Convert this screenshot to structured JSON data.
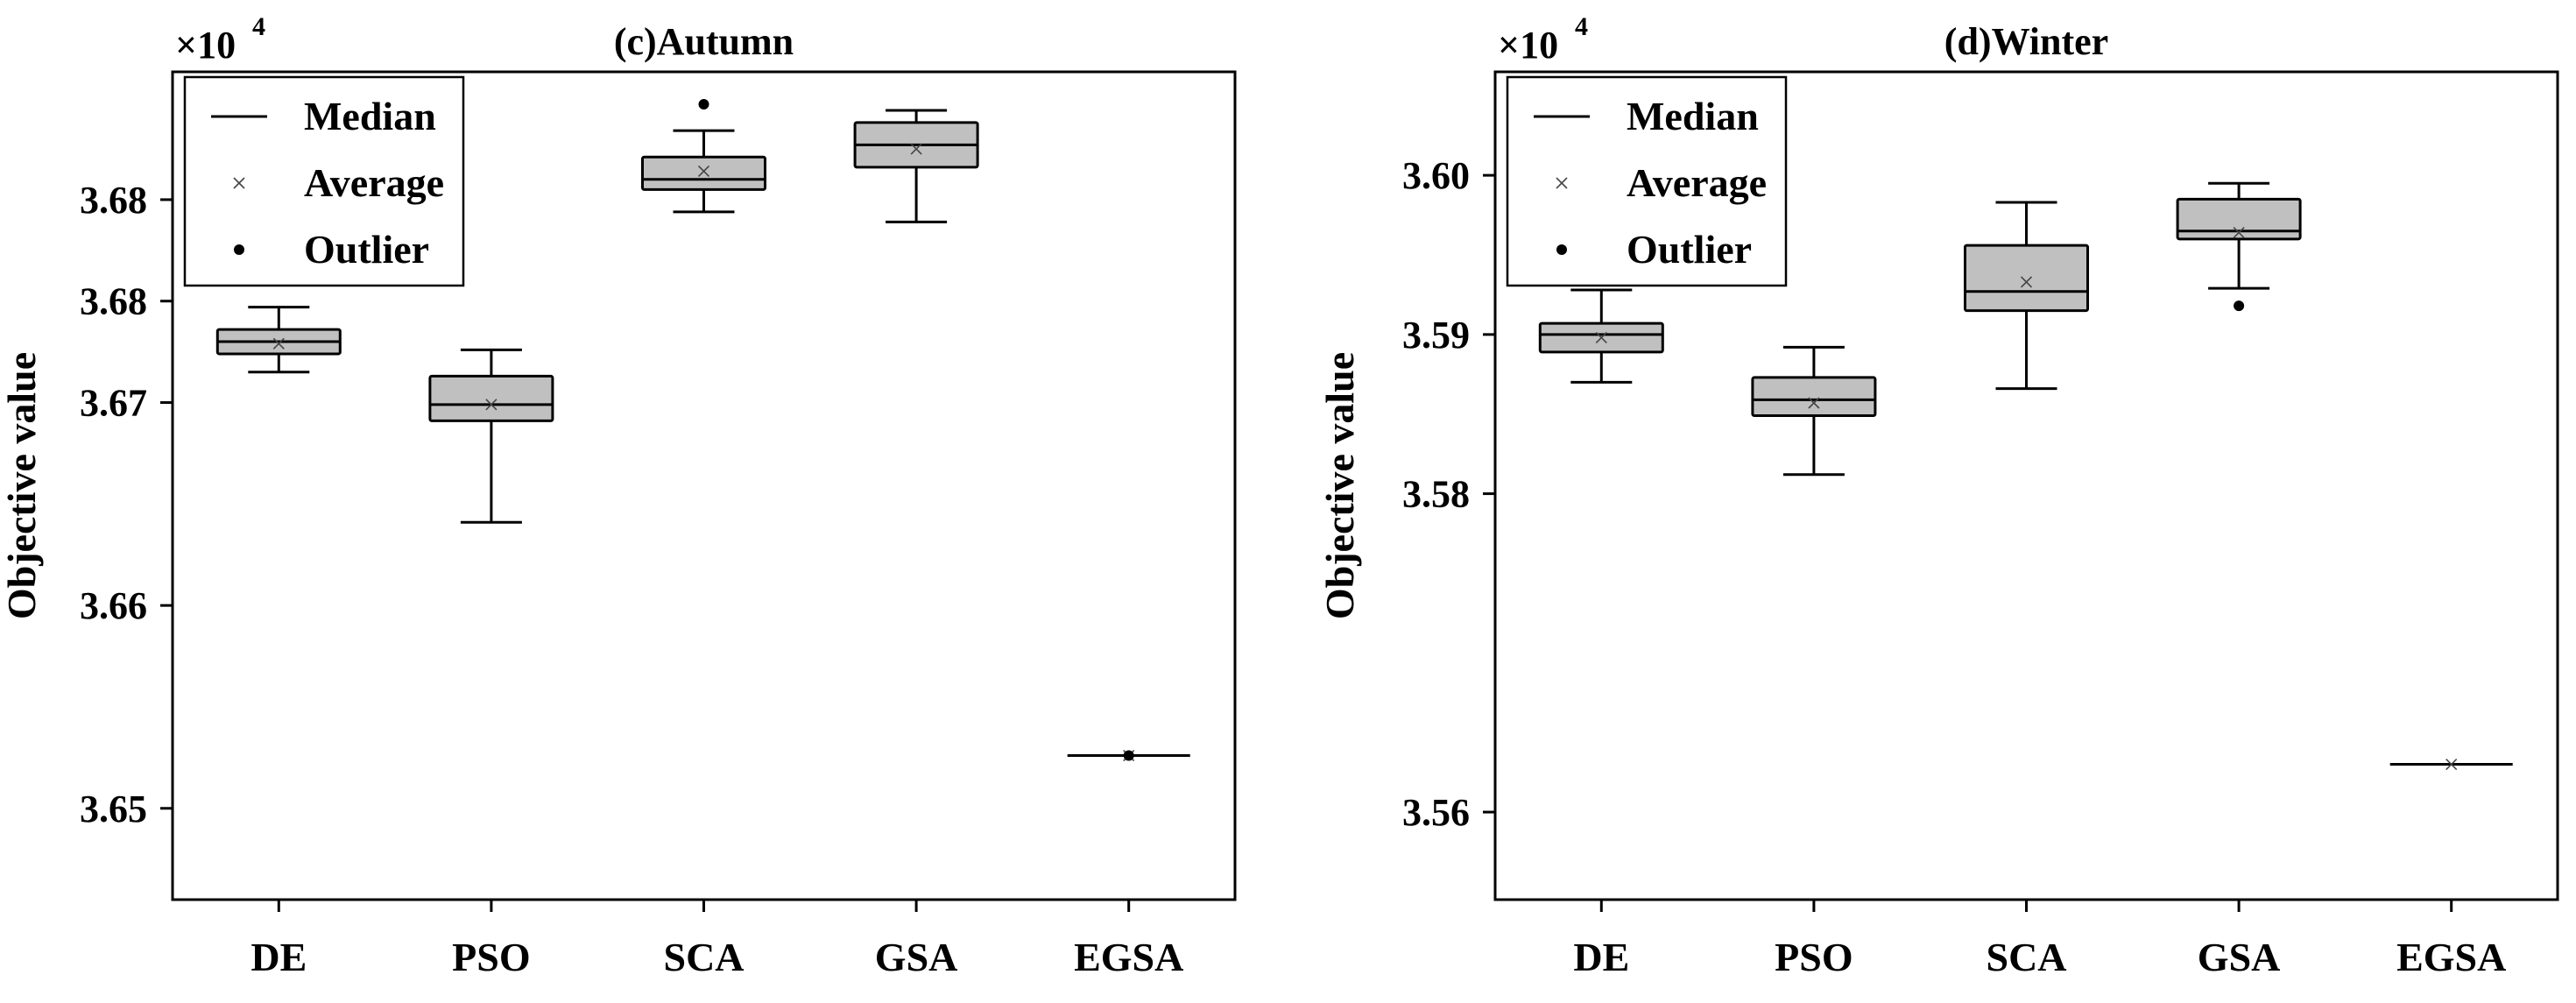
{
  "chart_data": [
    {
      "type": "boxplot",
      "title": "(c)Autumn",
      "multiplier": "×10",
      "multiplier_exp": "4",
      "ylabel": "Objective value",
      "ylim": [
        3.6455,
        3.6863
      ],
      "yticks": [
        3.65,
        3.66,
        3.67,
        3.675,
        3.68
      ],
      "ytick_labels": [
        "3.65",
        "3.66",
        "3.67",
        "3.68",
        "3.68"
      ],
      "categories": [
        "DE",
        "PSO",
        "SCA",
        "GSA",
        "EGSA"
      ],
      "boxes": [
        {
          "min": 3.6715,
          "q1": 3.6724,
          "median": 3.673,
          "q3": 3.6736,
          "max": 3.6747,
          "mean": 3.6729,
          "outliers": []
        },
        {
          "min": 3.6641,
          "q1": 3.6691,
          "median": 3.6699,
          "q3": 3.6713,
          "max": 3.6726,
          "mean": 3.6699,
          "outliers": []
        },
        {
          "min": 3.6794,
          "q1": 3.6805,
          "median": 3.681,
          "q3": 3.6821,
          "max": 3.6834,
          "mean": 3.6814,
          "outliers": [
            3.6847
          ]
        },
        {
          "min": 3.6789,
          "q1": 3.6816,
          "median": 3.6827,
          "q3": 3.6838,
          "max": 3.6844,
          "mean": 3.6825,
          "outliers": []
        },
        {
          "min": 3.6526,
          "q1": 3.6526,
          "median": 3.6526,
          "q3": 3.6526,
          "max": 3.6526,
          "mean": 3.6526,
          "outliers": [
            3.6526
          ]
        }
      ],
      "legend": [
        {
          "label": "Median",
          "marker": "line"
        },
        {
          "label": "Average",
          "marker": "x"
        },
        {
          "label": "Outlier",
          "marker": "dot"
        }
      ],
      "legend_position": "top-left",
      "box_color": "#c0c0c0"
    },
    {
      "type": "boxplot",
      "title": "(d)Winter",
      "multiplier": "×10",
      "multiplier_exp": "4",
      "ylabel": "Objective value",
      "ylim": [
        3.5545,
        3.6065
      ],
      "yticks": [
        3.56,
        3.58,
        3.59,
        3.6
      ],
      "ytick_labels": [
        "3.56",
        "3.58",
        "3.59",
        "3.60"
      ],
      "categories": [
        "DE",
        "PSO",
        "SCA",
        "GSA",
        "EGSA"
      ],
      "boxes": [
        {
          "min": 3.587,
          "q1": 3.5889,
          "median": 3.59,
          "q3": 3.5907,
          "max": 3.5928,
          "mean": 3.5898,
          "outliers": []
        },
        {
          "min": 3.5812,
          "q1": 3.5849,
          "median": 3.5859,
          "q3": 3.5873,
          "max": 3.5892,
          "mean": 3.5857,
          "outliers": []
        },
        {
          "min": 3.5866,
          "q1": 3.5915,
          "median": 3.5927,
          "q3": 3.5956,
          "max": 3.5983,
          "mean": 3.5933,
          "outliers": []
        },
        {
          "min": 3.5929,
          "q1": 3.596,
          "median": 3.5965,
          "q3": 3.5985,
          "max": 3.5995,
          "mean": 3.5964,
          "outliers": [
            3.5918
          ]
        },
        {
          "min": 3.563,
          "q1": 3.563,
          "median": 3.563,
          "q3": 3.563,
          "max": 3.563,
          "mean": 3.563,
          "outliers": []
        }
      ],
      "legend": [
        {
          "label": "Median",
          "marker": "line"
        },
        {
          "label": "Average",
          "marker": "x"
        },
        {
          "label": "Outlier",
          "marker": "dot"
        }
      ],
      "legend_position": "top-left",
      "box_color": "#c0c0c0"
    }
  ]
}
